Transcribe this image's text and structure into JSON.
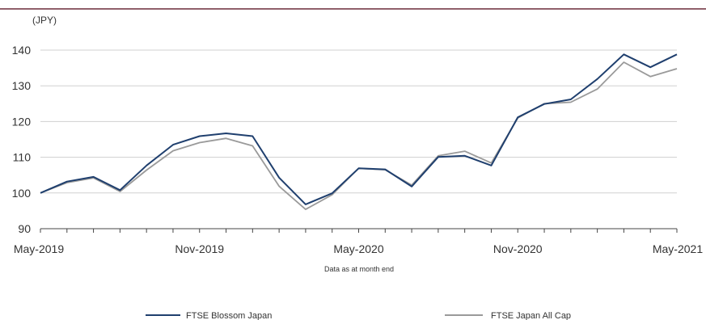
{
  "colors": {
    "header_rule": "#6b2b3a",
    "series_blossom": "#1f3f6e",
    "series_allcap": "#9a9a9a",
    "grid": "#d0d0d0",
    "axis": "#444444"
  },
  "chart_data": {
    "type": "line",
    "unit_label": "(JPY)",
    "note": "Data as at month end",
    "ylim": [
      90,
      140
    ],
    "yticks": [
      90,
      100,
      110,
      120,
      130,
      140
    ],
    "ytick_labels": [
      "90",
      "100",
      "110",
      "120",
      "130",
      "140"
    ],
    "grid": true,
    "legend_position": "bottom",
    "x": [
      "May-2019",
      "Jun-2019",
      "Jul-2019",
      "Aug-2019",
      "Sep-2019",
      "Oct-2019",
      "Nov-2019",
      "Dec-2019",
      "Jan-2020",
      "Feb-2020",
      "Mar-2020",
      "Apr-2020",
      "May-2020",
      "Jun-2020",
      "Jul-2020",
      "Aug-2020",
      "Sep-2020",
      "Oct-2020",
      "Nov-2020",
      "Dec-2020",
      "Jan-2021",
      "Feb-2021",
      "Mar-2021",
      "Apr-2021",
      "May-2021"
    ],
    "xtick_labels": [
      {
        "index": 0,
        "label": "May-2019"
      },
      {
        "index": 6,
        "label": "Nov-2019"
      },
      {
        "index": 12,
        "label": "May-2020"
      },
      {
        "index": 18,
        "label": "Nov-2020"
      },
      {
        "index": 24,
        "label": "May-2021"
      }
    ],
    "series": [
      {
        "name": "FTSE Blossom Japan",
        "values": [
          100.0,
          103.2,
          104.5,
          100.8,
          107.7,
          113.5,
          115.9,
          116.7,
          115.9,
          104.3,
          96.8,
          99.9,
          106.9,
          106.6,
          101.8,
          110.1,
          110.4,
          107.7,
          121.2,
          124.9,
          126.2,
          131.9,
          138.8,
          135.2,
          138.8
        ]
      },
      {
        "name": "FTSE Japan All Cap",
        "values": [
          100.0,
          102.9,
          104.2,
          100.4,
          106.4,
          111.8,
          114.1,
          115.3,
          113.2,
          101.9,
          95.4,
          99.5,
          106.9,
          106.5,
          102.2,
          110.4,
          111.7,
          108.4,
          121.0,
          125.0,
          125.4,
          129.1,
          136.6,
          132.6,
          134.8
        ]
      }
    ]
  }
}
